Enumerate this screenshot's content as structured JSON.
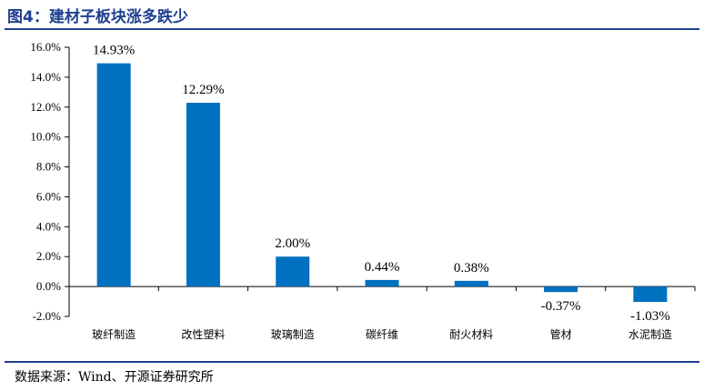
{
  "figure": {
    "title": "图4：建材子板块涨多跌少",
    "source": "数据来源：Wind、开源证券研究所"
  },
  "colors": {
    "bar": "#0070c0",
    "title": "#1f3f8f",
    "axis": "#000000"
  },
  "chart_data": {
    "type": "bar",
    "categories": [
      "玻纤制造",
      "改性塑料",
      "玻璃制造",
      "碳纤维",
      "耐火材料",
      "管材",
      "水泥制造"
    ],
    "values": [
      14.93,
      12.29,
      2.0,
      0.44,
      0.38,
      -0.37,
      -1.03
    ],
    "value_labels": [
      "14.93%",
      "12.29%",
      "2.00%",
      "0.44%",
      "0.38%",
      "-0.37%",
      "-1.03%"
    ],
    "ylim": [
      -2.0,
      16.0
    ],
    "yticks": [
      -2.0,
      0.0,
      2.0,
      4.0,
      6.0,
      8.0,
      10.0,
      12.0,
      14.0,
      16.0
    ],
    "ytick_labels": [
      "-2.0%",
      "0.0%",
      "2.0%",
      "4.0%",
      "6.0%",
      "8.0%",
      "10.0%",
      "12.0%",
      "14.0%",
      "16.0%"
    ],
    "title": "",
    "xlabel": "",
    "ylabel": "",
    "grid": false,
    "legend": "none"
  }
}
